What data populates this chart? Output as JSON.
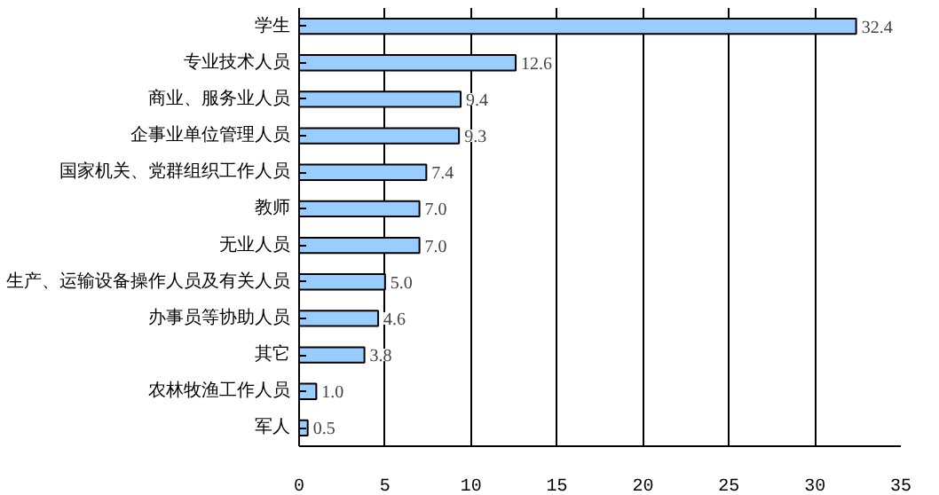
{
  "chart_data": {
    "type": "bar",
    "orientation": "horizontal",
    "categories": [
      "学生",
      "专业技术人员",
      "商业、服务业人员",
      "企事业单位管理人员",
      "国家机关、党群组织工作人员",
      "教师",
      "无业人员",
      "生产、运输设备操作人员及有关人员",
      "办事员等协助人员",
      "其它",
      "农林牧渔工作人员",
      "军人"
    ],
    "values": [
      32.4,
      12.6,
      9.4,
      9.3,
      7.4,
      7.0,
      7.0,
      5.0,
      4.6,
      3.8,
      1.0,
      0.5
    ],
    "color": "#99ccff",
    "value_labels": [
      "32.4",
      "12.6",
      "9.4",
      "9.3",
      "7.4",
      "7.0",
      "7.0",
      "5.0",
      "4.6",
      "3.8",
      "1.0",
      "0.5"
    ],
    "xlim": [
      0,
      35
    ],
    "xticks": [
      0,
      5,
      10,
      15,
      20,
      25,
      30,
      35
    ],
    "grid": "x"
  }
}
